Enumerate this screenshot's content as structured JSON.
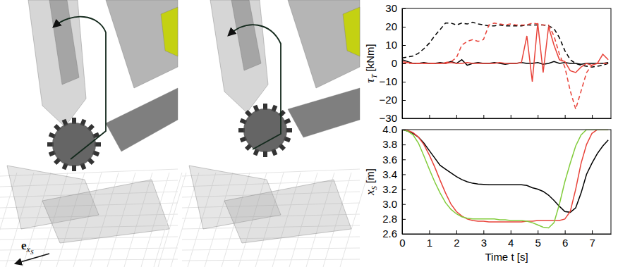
{
  "chart_data": [
    {
      "type": "line",
      "ylabel": {
        "symbol": "τ",
        "sub": "T",
        "unit": "[kNm]"
      },
      "x": [
        0,
        0.2,
        0.4,
        0.6,
        0.8,
        1,
        1.2,
        1.4,
        1.6,
        1.8,
        2,
        2.2,
        2.4,
        2.6,
        2.8,
        3,
        3.2,
        3.4,
        3.6,
        3.8,
        4,
        4.2,
        4.4,
        4.6,
        4.8,
        5,
        5.2,
        5.4,
        5.6,
        5.8,
        6,
        6.2,
        6.4,
        6.6,
        6.8,
        7,
        7.2,
        7.4,
        7.6
      ],
      "xlim": [
        0,
        7.7
      ],
      "xticks": [
        0,
        1,
        2,
        3,
        4,
        5,
        6,
        7
      ],
      "ylim": [
        -30,
        30
      ],
      "yticks": [
        {
          "value": -30,
          "label": "−30"
        },
        {
          "value": -20,
          "label": "−20"
        },
        {
          "value": -10,
          "label": "−10"
        },
        0,
        10,
        20,
        30
      ],
      "tick_labels": "y",
      "grid": false,
      "series": [
        {
          "color": "#000000",
          "line_style": "dashed",
          "values": [
            3,
            3.5,
            4,
            5.5,
            8,
            11,
            15,
            18.5,
            22,
            22,
            21,
            22,
            21.5,
            22.5,
            21.5,
            21,
            20.5,
            20.5,
            21,
            20.5,
            20.5,
            20.5,
            20.5,
            21,
            21,
            21,
            21,
            20.5,
            19,
            14,
            7,
            2,
            0,
            -1,
            -1.5,
            -2,
            -1.5,
            -1,
            0
          ]
        },
        {
          "color": "#000000",
          "line_style": "solid",
          "values": [
            2,
            1,
            0,
            0,
            0.5,
            0,
            0,
            0.5,
            0,
            1,
            0,
            2,
            -1,
            0,
            0.5,
            0,
            0,
            0.5,
            0,
            -0.5,
            0,
            0,
            0.5,
            0,
            0,
            0.5,
            -0.5,
            0,
            1,
            0,
            0.5,
            0,
            0,
            -0.5,
            0,
            0,
            0,
            0,
            0.5
          ]
        },
        {
          "color": "#e8433a",
          "line_style": "dashed",
          "values": [
            0,
            0,
            0,
            0,
            0,
            0,
            0,
            0,
            0.5,
            1,
            3,
            10,
            12,
            13,
            12,
            13,
            21,
            22,
            21.5,
            21,
            21.5,
            21,
            21,
            21,
            22,
            21.5,
            21,
            21,
            15,
            5,
            -2,
            -15,
            -25,
            -15,
            -5,
            -1,
            0,
            0,
            0
          ]
        },
        {
          "color": "#e8433a",
          "line_style": "solid",
          "values": [
            1,
            0.5,
            0,
            0,
            0,
            0,
            0,
            0,
            0,
            0.5,
            0,
            0,
            0.5,
            0,
            0,
            0,
            0,
            0,
            0.5,
            0,
            0,
            0,
            0.5,
            15,
            -10,
            22,
            -5,
            20,
            10,
            2,
            1,
            -4,
            -5,
            -2,
            0,
            -1,
            0,
            5,
            2
          ]
        }
      ]
    },
    {
      "type": "line",
      "ylabel": {
        "symbol": "x",
        "sub": "S",
        "unit": "[m]"
      },
      "xlabel": "Time t [s]",
      "x": [
        0,
        0.2,
        0.4,
        0.6,
        0.8,
        1,
        1.2,
        1.4,
        1.6,
        1.8,
        2,
        2.2,
        2.4,
        2.6,
        2.8,
        3,
        3.2,
        3.4,
        3.6,
        3.8,
        4,
        4.2,
        4.4,
        4.6,
        4.8,
        5,
        5.2,
        5.4,
        5.6,
        5.8,
        6,
        6.2,
        6.4,
        6.6,
        6.8,
        7,
        7.2,
        7.4,
        7.6
      ],
      "xlim": [
        0,
        7.7
      ],
      "xticks": [
        0,
        1,
        2,
        3,
        4,
        5,
        6,
        7
      ],
      "ylim": [
        2.6,
        4.0
      ],
      "yticks": [
        2.6,
        2.8,
        {
          "value": 3,
          "label": "3.0"
        },
        3.2,
        3.4,
        3.6,
        3.8,
        {
          "value": 4,
          "label": "4.0"
        }
      ],
      "tick_labels": true,
      "grid": false,
      "series": [
        {
          "color": "#000000",
          "line_style": "solid",
          "values": [
            4,
            3.98,
            3.95,
            3.9,
            3.82,
            3.72,
            3.62,
            3.52,
            3.47,
            3.42,
            3.37,
            3.33,
            3.3,
            3.28,
            3.27,
            3.265,
            3.26,
            3.26,
            3.26,
            3.26,
            3.26,
            3.26,
            3.26,
            3.25,
            3.22,
            3.2,
            3.17,
            3.12,
            3.05,
            2.97,
            2.9,
            2.89,
            2.95,
            3.15,
            3.4,
            3.55,
            3.68,
            3.78,
            3.86
          ]
        },
        {
          "color": "#e8433a",
          "line_style": "solid",
          "values": [
            4,
            3.99,
            3.96,
            3.9,
            3.8,
            3.66,
            3.5,
            3.32,
            3.15,
            3.0,
            2.9,
            2.84,
            2.8,
            2.78,
            2.77,
            2.77,
            2.76,
            2.76,
            2.76,
            2.76,
            2.76,
            2.76,
            2.76,
            2.77,
            2.77,
            2.78,
            2.78,
            2.78,
            2.78,
            2.78,
            2.8,
            2.9,
            3.2,
            3.55,
            3.8,
            3.95,
            4,
            4,
            4
          ]
        },
        {
          "color": "#82cc3c",
          "line_style": "solid",
          "values": [
            4,
            3.98,
            3.93,
            3.82,
            3.65,
            3.47,
            3.3,
            3.15,
            3.02,
            2.93,
            2.87,
            2.83,
            2.81,
            2.8,
            2.8,
            2.8,
            2.8,
            2.8,
            2.79,
            2.79,
            2.78,
            2.78,
            2.78,
            2.77,
            2.75,
            2.72,
            2.69,
            2.68,
            2.75,
            3.0,
            3.3,
            3.55,
            3.78,
            3.93,
            4,
            4,
            4,
            4,
            4
          ]
        }
      ]
    }
  ],
  "image_annotation": {
    "vector_label": {
      "symbol": "e",
      "sub": "x",
      "subsub": "S"
    }
  }
}
